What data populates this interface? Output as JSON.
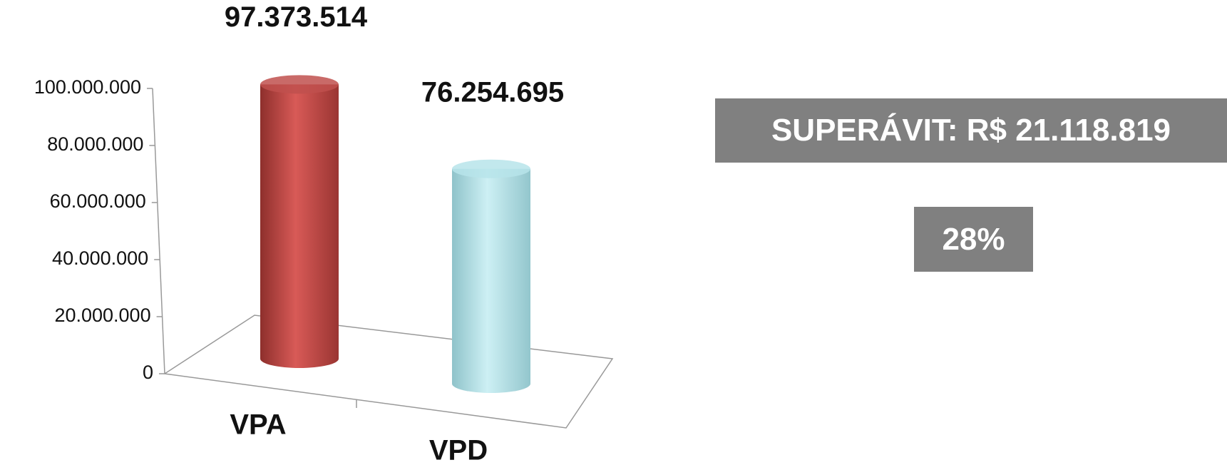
{
  "chart_data": {
    "type": "bar3d",
    "categories": [
      "VPA",
      "VPD"
    ],
    "values": [
      97373514,
      76254695
    ],
    "value_labels": [
      "97.373.514",
      "76.254.695"
    ],
    "colors": [
      "#c0504d",
      "#b7e4ea"
    ],
    "ylim": [
      0,
      100000000
    ],
    "yticks": [
      0,
      {
        "value": 20000000,
        "label": "20.000.000"
      },
      {
        "value": 40000000,
        "label": "40.000.000"
      },
      {
        "value": 60000000,
        "label": "60.000.000"
      },
      {
        "value": 80000000,
        "label": "80.000.000"
      },
      {
        "value": 100000000,
        "label": "100.000.000"
      }
    ],
    "annotations": [
      "SUPERÁVIT: R$ 21.118.819",
      "28%"
    ]
  }
}
